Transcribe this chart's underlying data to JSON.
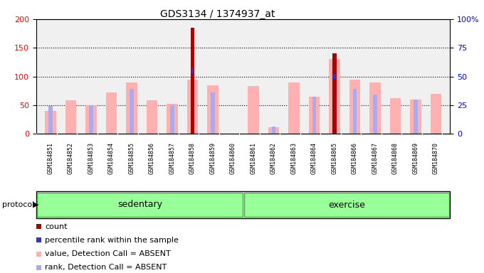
{
  "title": "GDS3134 / 1374937_at",
  "samples": [
    "GSM184851",
    "GSM184852",
    "GSM184853",
    "GSM184854",
    "GSM184855",
    "GSM184856",
    "GSM184857",
    "GSM184858",
    "GSM184859",
    "GSM184860",
    "GSM184861",
    "GSM184862",
    "GSM184863",
    "GSM184864",
    "GSM184865",
    "GSM184866",
    "GSM184867",
    "GSM184868",
    "GSM184869",
    "GSM184870"
  ],
  "count_values": [
    0,
    0,
    0,
    0,
    0,
    0,
    0,
    185,
    0,
    0,
    0,
    0,
    0,
    0,
    140,
    0,
    0,
    0,
    0,
    0
  ],
  "percentile_values": [
    0,
    0,
    0,
    0,
    0,
    0,
    0,
    55,
    0,
    0,
    0,
    0,
    0,
    0,
    50,
    0,
    0,
    0,
    0,
    0
  ],
  "pink_bar_values": [
    40,
    58,
    50,
    72,
    90,
    58,
    52,
    94,
    85,
    0,
    83,
    11,
    90,
    65,
    130,
    95,
    90,
    62,
    60,
    70
  ],
  "blue_marker_values": [
    48,
    0,
    50,
    0,
    78,
    0,
    50,
    0,
    72,
    0,
    0,
    13,
    0,
    65,
    0,
    78,
    68,
    0,
    60,
    0
  ],
  "left_ylim": [
    0,
    200
  ],
  "right_ylim": [
    0,
    100
  ],
  "left_yticks": [
    0,
    50,
    100,
    150,
    200
  ],
  "right_yticks": [
    0,
    25,
    50,
    75,
    100
  ],
  "right_yticklabels": [
    "0",
    "25",
    "50",
    "75",
    "100%"
  ],
  "count_color": "#aa0000",
  "percentile_color": "#3333cc",
  "pink_color": "#ffb0b0",
  "blue_light_color": "#aaaaee",
  "plot_bg": "#f0f0f0",
  "green_color": "#99ff99",
  "green_border": "#33bb33",
  "title_fontsize": 10
}
